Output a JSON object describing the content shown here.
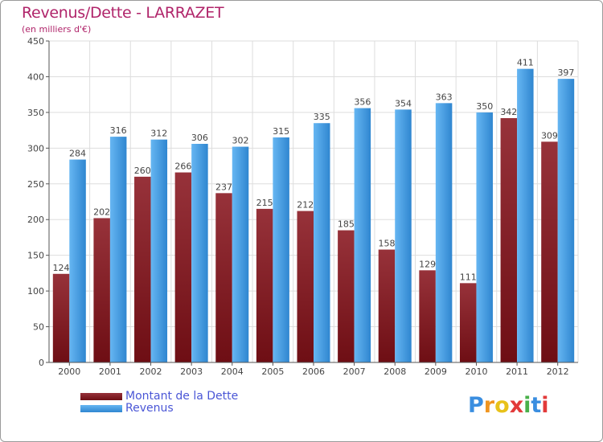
{
  "header": {
    "title": "Revenus/Dette - LARRAZET",
    "subtitle": "(en milliers d'€)"
  },
  "legend": {
    "dette_label": "Montant de la Dette",
    "revenus_label": "Revenus",
    "placement": "bottom-left"
  },
  "logo": {
    "text": "Proxiti",
    "letters": [
      "P",
      "r",
      "o",
      "x",
      "i",
      "t",
      "i"
    ],
    "letter_colors": [
      "#3a8ee0",
      "#f0951f",
      "#e8c21a",
      "#e23a3a",
      "#49b04a",
      "#3a8ee0",
      "#e23a3a"
    ]
  },
  "colors": {
    "dette": "#6e0e14",
    "dette_light": "#97323a",
    "revenus": "#2f86d0",
    "revenus_light": "#66b6f2",
    "title": "#b0246a",
    "legend_text": "#4a56d6",
    "grid": "#dddddd"
  },
  "chart_data": {
    "type": "bar",
    "title": "Revenus/Dette - LARRAZET",
    "subtitle": "(en milliers d'€)",
    "xlabel": "",
    "ylabel": "",
    "categories": [
      "2000",
      "2001",
      "2002",
      "2003",
      "2004",
      "2005",
      "2006",
      "2007",
      "2008",
      "2009",
      "2010",
      "2011",
      "2012"
    ],
    "series": [
      {
        "name": "Montant de la Dette",
        "values": [
          124,
          202,
          260,
          266,
          237,
          215,
          212,
          185,
          158,
          129,
          111,
          342,
          309
        ]
      },
      {
        "name": "Revenus",
        "values": [
          284,
          316,
          312,
          306,
          302,
          315,
          335,
          356,
          354,
          363,
          350,
          411,
          397
        ]
      }
    ],
    "ylim": [
      0,
      450
    ],
    "yticks": [
      0,
      50,
      100,
      150,
      200,
      250,
      300,
      350,
      400,
      450
    ],
    "grid": true,
    "legend_placement": "bottom-left"
  }
}
